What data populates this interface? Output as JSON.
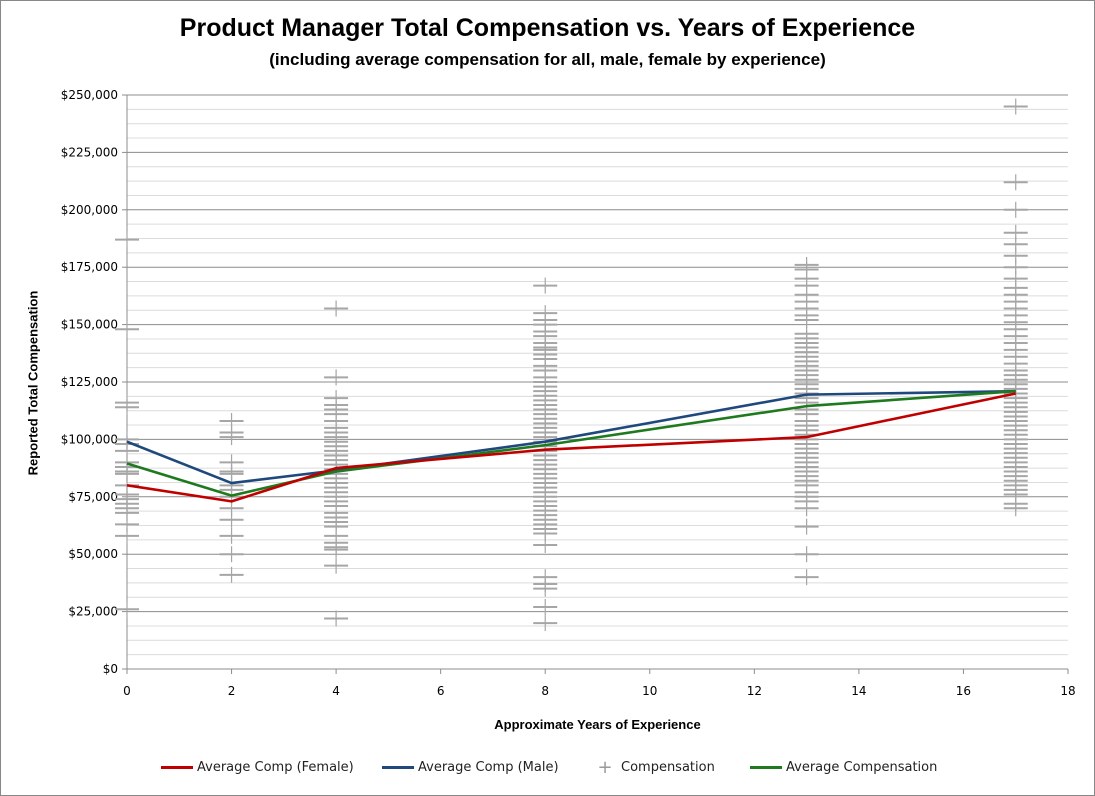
{
  "chart_data": {
    "type": "scatter",
    "title": "Product Manager Total Compensation vs. Years of Experience",
    "subtitle": "(including average compensation for all, male, female by experience)",
    "xlabel": "Approximate Years of Experience",
    "ylabel": "Reported Total Compensation",
    "xlim": [
      0,
      18
    ],
    "ylim": [
      0,
      250000
    ],
    "x_ticks": [
      "0",
      "2",
      "4",
      "6",
      "8",
      "10",
      "12",
      "14",
      "16",
      "18"
    ],
    "y_ticks": [
      "$0",
      "$25,000",
      "$50,000",
      "$75,000",
      "$100,000",
      "$125,000",
      "$150,000",
      "$175,000",
      "$200,000",
      "$225,000",
      "$250,000"
    ],
    "grid": true,
    "legend_position": "bottom",
    "series": [
      {
        "name": "Average Comp (Female)",
        "kind": "line",
        "color": "#c00000",
        "x": [
          0,
          2,
          4,
          8,
          13,
          17
        ],
        "y": [
          80000,
          73000,
          87500,
          95500,
          101000,
          120000
        ]
      },
      {
        "name": "Average Comp (Male)",
        "kind": "line",
        "color": "#1f497d",
        "x": [
          0,
          2,
          4,
          8,
          13,
          17
        ],
        "y": [
          99000,
          81000,
          86500,
          99000,
          119500,
          121000
        ]
      },
      {
        "name": "Compensation",
        "kind": "scatter",
        "marker": "plus",
        "color": "#a6a6a6",
        "points": [
          {
            "x": 0,
            "values": [
              187000,
              148000,
              116000,
              114000,
              100000,
              98000,
              95000,
              90000,
              88000,
              86000,
              85000,
              80000,
              76000,
              74000,
              72000,
              70000,
              68000,
              63000,
              58000,
              26000
            ]
          },
          {
            "x": 2,
            "values": [
              108000,
              103000,
              101000,
              90000,
              86000,
              85000,
              80000,
              78000,
              75000,
              70000,
              65000,
              58000,
              50000,
              41000
            ]
          },
          {
            "x": 4,
            "values": [
              157000,
              127000,
              118000,
              115000,
              113000,
              111000,
              108000,
              105000,
              103000,
              101000,
              99000,
              97000,
              95000,
              93000,
              91000,
              89000,
              87000,
              85000,
              83000,
              81000,
              79000,
              77000,
              75000,
              73000,
              71000,
              68000,
              66000,
              64000,
              62000,
              58000,
              55000,
              53000,
              52000,
              45000,
              22000
            ]
          },
          {
            "x": 8,
            "values": [
              167000,
              155000,
              152000,
              150000,
              147000,
              145000,
              142000,
              140000,
              139000,
              137000,
              135000,
              132000,
              130000,
              127000,
              125000,
              123000,
              121000,
              119000,
              117000,
              115000,
              113000,
              111000,
              109000,
              107000,
              105000,
              103000,
              101000,
              99000,
              97000,
              95000,
              93000,
              91000,
              89000,
              87000,
              85000,
              83000,
              81000,
              79000,
              77000,
              75000,
              73000,
              71000,
              69000,
              67000,
              65000,
              63000,
              61000,
              59000,
              54000,
              40000,
              37000,
              35000,
              27000,
              20000
            ]
          },
          {
            "x": 13,
            "values": [
              176000,
              174000,
              170000,
              167000,
              163000,
              160000,
              157000,
              154000,
              152000,
              146000,
              144000,
              142000,
              140000,
              138000,
              136000,
              134000,
              132000,
              130000,
              128000,
              126000,
              124000,
              122000,
              120000,
              118000,
              116000,
              113000,
              111000,
              108000,
              106000,
              104000,
              102000,
              100000,
              98000,
              96000,
              94000,
              92000,
              90000,
              88000,
              86000,
              84000,
              82000,
              80000,
              77000,
              75000,
              73000,
              70000,
              62000,
              50000,
              40000
            ]
          },
          {
            "x": 17,
            "values": [
              245000,
              212000,
              200000,
              190000,
              185000,
              180000,
              175000,
              170000,
              166000,
              163000,
              160000,
              157000,
              154000,
              151000,
              148000,
              145000,
              142000,
              139000,
              136000,
              133000,
              130000,
              128000,
              126000,
              124000,
              122000,
              120000,
              118000,
              116000,
              114000,
              112000,
              110000,
              108000,
              106000,
              104000,
              102000,
              100000,
              98000,
              96000,
              94000,
              92000,
              90000,
              88000,
              86000,
              84000,
              82000,
              80000,
              78000,
              76000,
              72000,
              70000
            ]
          }
        ]
      },
      {
        "name": "Average Compensation",
        "kind": "line",
        "color": "#1f7a1f",
        "x": [
          0,
          2,
          4,
          8,
          13,
          17
        ],
        "y": [
          89500,
          75500,
          86000,
          97500,
          114500,
          121000
        ]
      }
    ]
  }
}
